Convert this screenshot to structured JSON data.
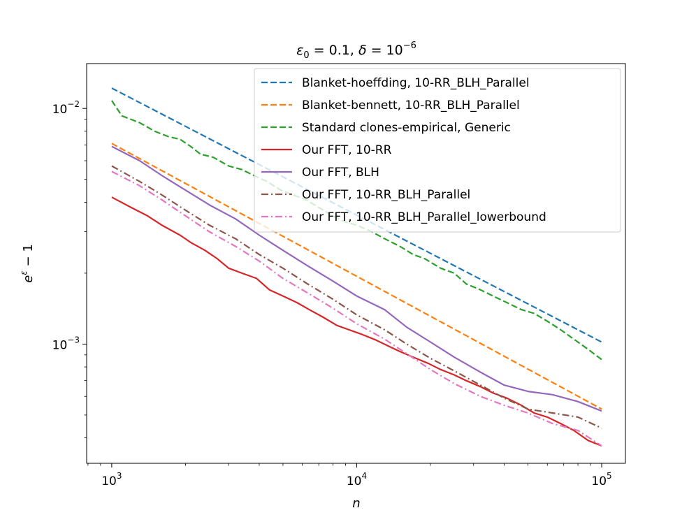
{
  "chart_data": {
    "type": "line",
    "title": "ε₀ = 0.1, δ = 10⁻⁶",
    "title_parts": {
      "eps": "ε",
      "eps_sub": "0",
      "eq1": " = 0.1, ",
      "delta": "δ",
      "eq2": " = 10",
      "exp": "−6"
    },
    "xlabel": "n",
    "ylabel": "e^ε − 1",
    "ylabel_parts": {
      "base": "e",
      "exp": "ε",
      "rest": " − 1"
    },
    "xscale": "log",
    "yscale": "log",
    "xlim": [
      790,
      125000
    ],
    "ylim": [
      0.000312,
      0.0155
    ],
    "x_major_ticks": [
      {
        "value": 1000,
        "base": "10",
        "exp": "3"
      },
      {
        "value": 10000,
        "base": "10",
        "exp": "4"
      },
      {
        "value": 100000,
        "base": "10",
        "exp": "5"
      }
    ],
    "y_major_ticks": [
      {
        "value": 0.01,
        "base": "10",
        "exp": "−2"
      },
      {
        "value": 0.001,
        "base": "10",
        "exp": "−3"
      }
    ],
    "legend_position": "top-right",
    "series": [
      {
        "name": "Blanket-hoeffding, 10-RR_BLH_Parallel",
        "color": "#1f77b4",
        "style": "dashed",
        "points": [
          [
            1000,
            0.0122
          ],
          [
            100000,
            0.00102
          ]
        ]
      },
      {
        "name": "Blanket-bennett, 10-RR_BLH_Parallel",
        "color": "#ff7f0e",
        "style": "dashed",
        "points": [
          [
            1000,
            0.0071
          ],
          [
            100000,
            0.00053
          ]
        ]
      },
      {
        "name": "Standard clones-empirical, Generic",
        "color": "#2ca02c",
        "style": "dashed",
        "points": [
          [
            1000,
            0.0108
          ],
          [
            1100,
            0.0093
          ],
          [
            1300,
            0.0087
          ],
          [
            1500,
            0.008
          ],
          [
            1700,
            0.0076
          ],
          [
            1900,
            0.0074
          ],
          [
            2100,
            0.0069
          ],
          [
            2300,
            0.0064
          ],
          [
            2600,
            0.0062
          ],
          [
            3000,
            0.0057
          ],
          [
            3400,
            0.0055
          ],
          [
            3800,
            0.0052
          ],
          [
            4300,
            0.0049
          ],
          [
            4900,
            0.0045
          ],
          [
            5500,
            0.0043
          ],
          [
            6200,
            0.0041
          ],
          [
            7000,
            0.0038
          ],
          [
            8000,
            0.0035
          ],
          [
            9000,
            0.0033
          ],
          [
            10000,
            0.0032
          ],
          [
            11500,
            0.003
          ],
          [
            13000,
            0.0028
          ],
          [
            15000,
            0.0026
          ],
          [
            17000,
            0.0024
          ],
          [
            19000,
            0.0023
          ],
          [
            22000,
            0.0021
          ],
          [
            25000,
            0.002
          ],
          [
            28000,
            0.0018
          ],
          [
            32000,
            0.0017
          ],
          [
            36000,
            0.0016
          ],
          [
            41000,
            0.0015
          ],
          [
            47000,
            0.0014
          ],
          [
            53000,
            0.00135
          ],
          [
            60000,
            0.00125
          ],
          [
            68000,
            0.00115
          ],
          [
            77000,
            0.00105
          ],
          [
            88000,
            0.00095
          ],
          [
            100000,
            0.00086
          ]
        ]
      },
      {
        "name": "Our FFT, 10-RR",
        "color": "#d62728",
        "style": "solid",
        "points": [
          [
            1000,
            0.0042
          ],
          [
            1200,
            0.0038
          ],
          [
            1400,
            0.0035
          ],
          [
            1600,
            0.0032
          ],
          [
            1900,
            0.0029
          ],
          [
            2100,
            0.0027
          ],
          [
            2400,
            0.0025
          ],
          [
            2700,
            0.0023
          ],
          [
            3000,
            0.0021
          ],
          [
            3400,
            0.002
          ],
          [
            3900,
            0.0019
          ],
          [
            4400,
            0.0017
          ],
          [
            5000,
            0.0016
          ],
          [
            5700,
            0.0015
          ],
          [
            6400,
            0.0014
          ],
          [
            7300,
            0.0013
          ],
          [
            8300,
            0.0012
          ],
          [
            9300,
            0.00115
          ],
          [
            10500,
            0.0011
          ],
          [
            12000,
            0.00104
          ],
          [
            13500,
            0.00098
          ],
          [
            15000,
            0.00093
          ],
          [
            17000,
            0.00088
          ],
          [
            19500,
            0.00083
          ],
          [
            22000,
            0.00078
          ],
          [
            25000,
            0.00074
          ],
          [
            28000,
            0.0007
          ],
          [
            32000,
            0.00066
          ],
          [
            36000,
            0.00062
          ],
          [
            41000,
            0.00059
          ],
          [
            47000,
            0.00055
          ],
          [
            53000,
            0.00051
          ],
          [
            60000,
            0.00049
          ],
          [
            68000,
            0.00046
          ],
          [
            77000,
            0.00043
          ],
          [
            88000,
            0.00039
          ],
          [
            100000,
            0.00037
          ]
        ]
      },
      {
        "name": "Our FFT, BLH",
        "color": "#9467bd",
        "style": "solid",
        "points": [
          [
            1000,
            0.0069
          ],
          [
            1300,
            0.006
          ],
          [
            1600,
            0.0052
          ],
          [
            2000,
            0.0045
          ],
          [
            2500,
            0.0039
          ],
          [
            3200,
            0.0034
          ],
          [
            4000,
            0.0029
          ],
          [
            5000,
            0.0025
          ],
          [
            6300,
            0.00215
          ],
          [
            8000,
            0.00185
          ],
          [
            10000,
            0.0016
          ],
          [
            13000,
            0.0014
          ],
          [
            16000,
            0.00118
          ],
          [
            20000,
            0.00102
          ],
          [
            25000,
            0.00088
          ],
          [
            32000,
            0.00076
          ],
          [
            40000,
            0.00067
          ],
          [
            50000,
            0.00063
          ],
          [
            63000,
            0.00061
          ],
          [
            80000,
            0.00057
          ],
          [
            100000,
            0.00052
          ]
        ]
      },
      {
        "name": "Our FFT, 10-RR_BLH_Parallel",
        "color": "#8c564b",
        "style": "dashdot",
        "points": [
          [
            1000,
            0.0057
          ],
          [
            1300,
            0.0049
          ],
          [
            1600,
            0.0043
          ],
          [
            2000,
            0.0037
          ],
          [
            2500,
            0.0032
          ],
          [
            3200,
            0.0028
          ],
          [
            4000,
            0.0024
          ],
          [
            5000,
            0.0021
          ],
          [
            6300,
            0.0018
          ],
          [
            8000,
            0.00155
          ],
          [
            10000,
            0.00133
          ],
          [
            13000,
            0.00115
          ],
          [
            16000,
            0.001
          ],
          [
            20000,
            0.00087
          ],
          [
            25000,
            0.00077
          ],
          [
            32000,
            0.00067
          ],
          [
            40000,
            0.00059
          ],
          [
            50000,
            0.00053
          ],
          [
            63000,
            0.00051
          ],
          [
            80000,
            0.00049
          ],
          [
            100000,
            0.00044
          ]
        ]
      },
      {
        "name": "Our FFT, 10-RR_BLH_Parallel_lowerbound",
        "color": "#e377c2",
        "style": "dashdot",
        "points": [
          [
            1000,
            0.0054
          ],
          [
            1300,
            0.0047
          ],
          [
            1600,
            0.0041
          ],
          [
            2000,
            0.0035
          ],
          [
            2500,
            0.003
          ],
          [
            3200,
            0.0026
          ],
          [
            4000,
            0.00225
          ],
          [
            5000,
            0.0019
          ],
          [
            6300,
            0.00165
          ],
          [
            8000,
            0.00142
          ],
          [
            10000,
            0.00122
          ],
          [
            13000,
            0.00105
          ],
          [
            16000,
            0.00091
          ],
          [
            20000,
            0.00078
          ],
          [
            25000,
            0.00068
          ],
          [
            32000,
            0.0006
          ],
          [
            40000,
            0.00055
          ],
          [
            50000,
            0.00051
          ],
          [
            63000,
            0.00046
          ],
          [
            80000,
            0.00043
          ],
          [
            100000,
            0.00037
          ]
        ]
      }
    ]
  }
}
